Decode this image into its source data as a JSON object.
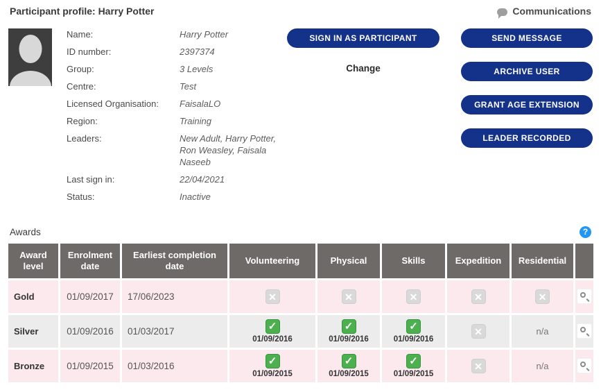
{
  "header": {
    "title": "Participant profile: Harry Potter",
    "communications_label": "Communications"
  },
  "profile": {
    "fields": [
      {
        "label": "Name:",
        "value": "Harry Potter"
      },
      {
        "label": "ID number:",
        "value": "2397374"
      },
      {
        "label": "Group:",
        "value": "3 Levels"
      },
      {
        "label": "Centre:",
        "value": "Test"
      },
      {
        "label": "Licensed Organisation:",
        "value": "FaisalaLO"
      },
      {
        "label": "Region:",
        "value": "Training"
      },
      {
        "label": "Leaders:",
        "value": "New Adult, Harry Potter, Ron Weasley, Faisala Naseeb"
      },
      {
        "label": "Last sign in:",
        "value": "22/04/2021"
      },
      {
        "label": "Status:",
        "value": "Inactive"
      }
    ],
    "change_label": "Change",
    "buttons": {
      "sign_in": "SIGN IN AS PARTICIPANT",
      "send_message": "SEND MESSAGE",
      "archive_user": "ARCHIVE USER",
      "grant_age_extension": "GRANT AGE EXTENSION",
      "leader_recorded": "LEADER RECORDED"
    }
  },
  "awards": {
    "title": "Awards",
    "help_icon_glyph": "?",
    "table": {
      "columns": [
        "Award level",
        "Enrolment date",
        "Earliest completion date",
        "Volunteering",
        "Physical",
        "Skills",
        "Expedition",
        "Residential",
        ""
      ],
      "section_keys": [
        "volunteering",
        "physical",
        "skills",
        "expedition",
        "residential"
      ],
      "icons": {
        "check": "✓",
        "cross": "✕",
        "na": "n/a"
      },
      "rows": [
        {
          "style": "pink",
          "award_level": "Gold",
          "enrolment_date": "01/09/2017",
          "earliest_completion_date": "17/06/2023",
          "sections": {
            "volunteering": {
              "status": "incomplete"
            },
            "physical": {
              "status": "incomplete"
            },
            "skills": {
              "status": "incomplete"
            },
            "expedition": {
              "status": "incomplete"
            },
            "residential": {
              "status": "incomplete"
            }
          }
        },
        {
          "style": "grey",
          "award_level": "Silver",
          "enrolment_date": "01/09/2016",
          "earliest_completion_date": "01/03/2017",
          "sections": {
            "volunteering": {
              "status": "complete",
              "date": "01/09/2016"
            },
            "physical": {
              "status": "complete",
              "date": "01/09/2016"
            },
            "skills": {
              "status": "complete",
              "date": "01/09/2016"
            },
            "expedition": {
              "status": "incomplete"
            },
            "residential": {
              "status": "na"
            }
          }
        },
        {
          "style": "pink",
          "award_level": "Bronze",
          "enrolment_date": "01/09/2015",
          "earliest_completion_date": "01/03/2016",
          "sections": {
            "volunteering": {
              "status": "complete",
              "date": "01/09/2015"
            },
            "physical": {
              "status": "complete",
              "date": "01/09/2015"
            },
            "skills": {
              "status": "complete",
              "date": "01/09/2015"
            },
            "expedition": {
              "status": "incomplete"
            },
            "residential": {
              "status": "na"
            }
          }
        }
      ]
    }
  },
  "colors": {
    "button_blue": "#15328a",
    "table_header_grey": "#6d6a67",
    "row_pink": "#fce9ed",
    "row_grey": "#ececec",
    "check_green": "#4db04f",
    "cross_grey": "#d9d9d9",
    "help_blue": "#2196f3"
  }
}
